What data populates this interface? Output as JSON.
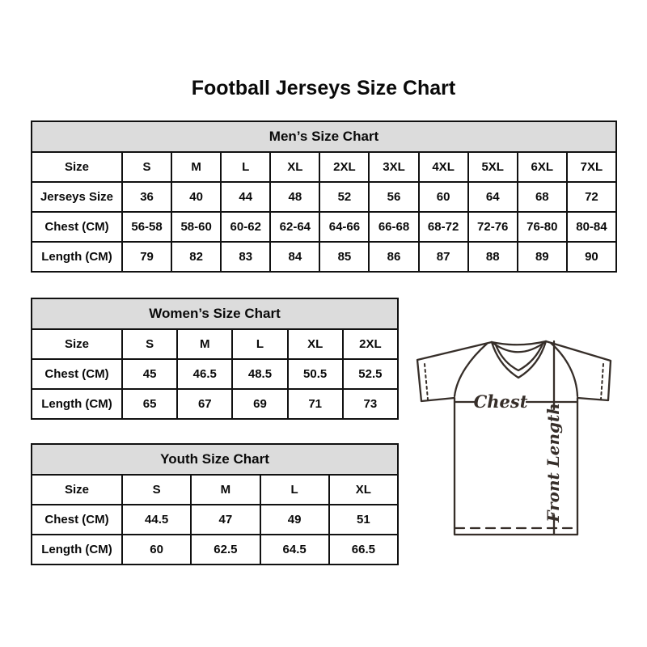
{
  "page": {
    "title": "Football Jerseys Size Chart"
  },
  "tables": {
    "men": {
      "header": "Men’s Size Chart",
      "rows": [
        [
          "Size",
          "S",
          "M",
          "L",
          "XL",
          "2XL",
          "3XL",
          "4XL",
          "5XL",
          "6XL",
          "7XL"
        ],
        [
          "Jerseys Size",
          "36",
          "40",
          "44",
          "48",
          "52",
          "56",
          "60",
          "64",
          "68",
          "72"
        ],
        [
          "Chest (CM)",
          "56-58",
          "58-60",
          "60-62",
          "62-64",
          "64-66",
          "66-68",
          "68-72",
          "72-76",
          "76-80",
          "80-84"
        ],
        [
          "Length (CM)",
          "79",
          "82",
          "83",
          "84",
          "85",
          "86",
          "87",
          "88",
          "89",
          "90"
        ]
      ]
    },
    "women": {
      "header": "Women’s Size Chart",
      "rows": [
        [
          "Size",
          "S",
          "M",
          "L",
          "XL",
          "2XL"
        ],
        [
          "Chest (CM)",
          "45",
          "46.5",
          "48.5",
          "50.5",
          "52.5"
        ],
        [
          "Length (CM)",
          "65",
          "67",
          "69",
          "71",
          "73"
        ]
      ]
    },
    "youth": {
      "header": "Youth Size Chart",
      "rows": [
        [
          "Size",
          "S",
          "M",
          "L",
          "XL"
        ],
        [
          "Chest (CM)",
          "44.5",
          "47",
          "49",
          "51"
        ],
        [
          "Length (CM)",
          "60",
          "62.5",
          "64.5",
          "66.5"
        ]
      ]
    }
  },
  "diagram": {
    "chest_label": "Chest",
    "front_length_label": "Front Length"
  },
  "colors": {
    "table_header_bg": "#dcdcdc",
    "table_border": "#111111",
    "text": "#0a0a0a",
    "diagram_stroke": "#362e29"
  }
}
